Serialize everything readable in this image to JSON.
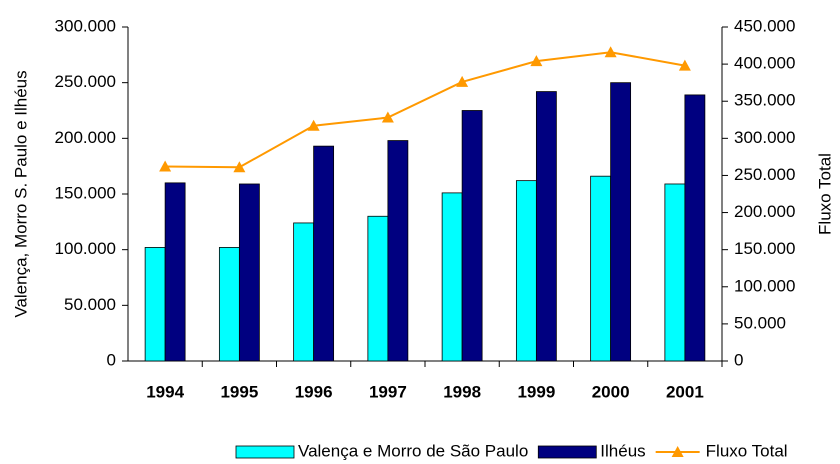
{
  "chart_data": {
    "type": "bar_line",
    "categories": [
      "1994",
      "1995",
      "1996",
      "1997",
      "1998",
      "1999",
      "2000",
      "2001"
    ],
    "series": [
      {
        "name": "Valença e Morro de São Paulo",
        "color": "#00ffff",
        "values": [
          102000,
          102000,
          124000,
          130000,
          151000,
          162000,
          166000,
          159000
        ]
      },
      {
        "name": "Ilhéus",
        "color": "#000080",
        "values": [
          160000,
          159000,
          193000,
          198000,
          225000,
          242000,
          250000,
          239000
        ]
      },
      {
        "name": "Fluxo Total",
        "color": "#ff9900",
        "axis": "y2",
        "values": [
          262000,
          261000,
          317000,
          328000,
          376000,
          404000,
          416000,
          398000
        ]
      }
    ],
    "ylabel": "Valença, Morro S. Paulo e Ilhéus",
    "y2label": "Fluxo Total",
    "ylim": [
      0,
      300000
    ],
    "yticks": [
      0,
      {
        "value": 50000,
        "label": "50.000"
      },
      {
        "value": 100000,
        "label": "100.000"
      },
      {
        "value": 150000,
        "label": "150.000"
      },
      {
        "value": 200000,
        "label": "200.000"
      },
      {
        "value": 250000,
        "label": "250.000"
      },
      {
        "value": 300000,
        "label": "300.000"
      }
    ],
    "y2lim": [
      0,
      450000
    ],
    "y2ticks": [
      0,
      {
        "value": 50000,
        "label": "50.000"
      },
      {
        "value": 100000,
        "label": "100.000"
      },
      {
        "value": 150000,
        "label": "150.000"
      },
      {
        "value": 200000,
        "label": "200.000"
      },
      {
        "value": 250000,
        "label": "250.000"
      },
      {
        "value": 300000,
        "label": "300.000"
      },
      {
        "value": 350000,
        "label": "350.000"
      },
      {
        "value": 400000,
        "label": "400.000"
      },
      {
        "value": 450000,
        "label": "450.000"
      }
    ],
    "legend": "bottom"
  }
}
